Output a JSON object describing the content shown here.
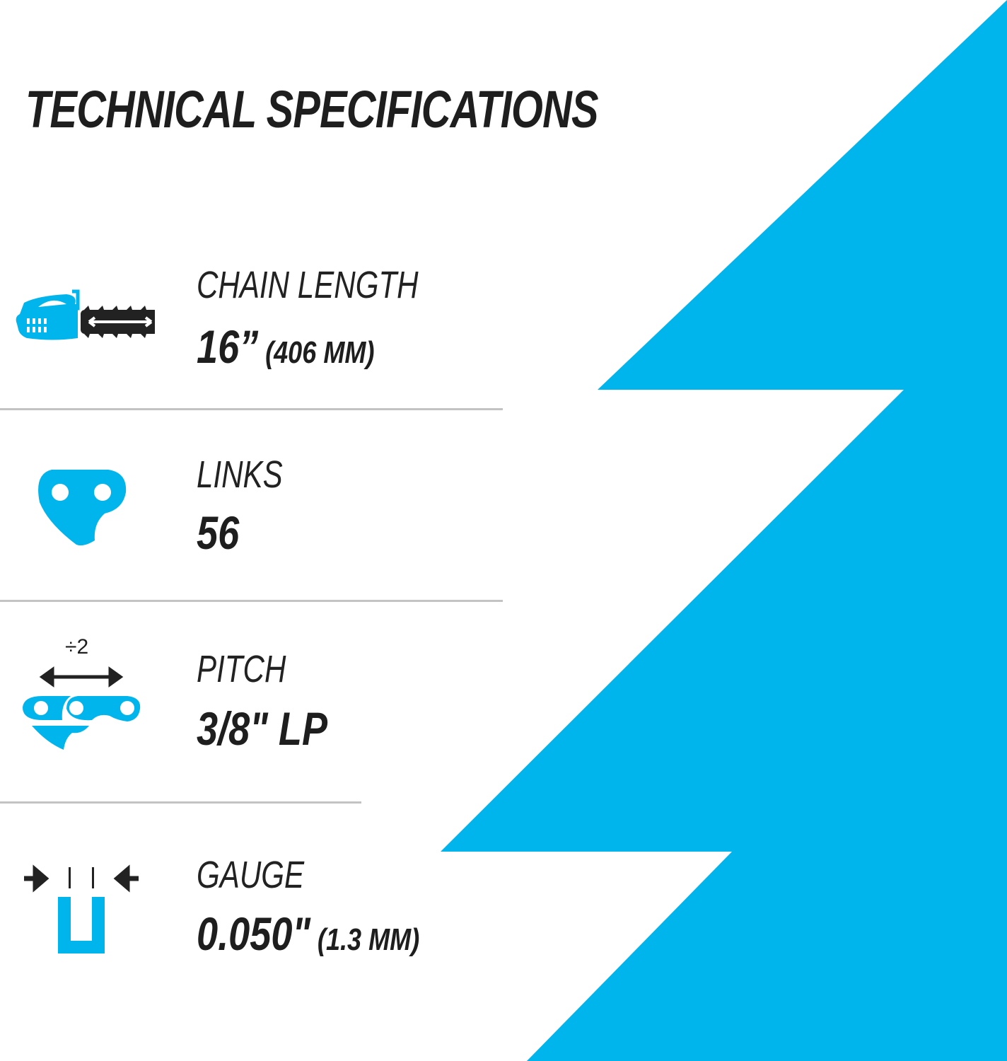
{
  "title": "TECHNICAL SPECIFICATIONS",
  "colors": {
    "accent": "#00b4ec",
    "text": "#1e1e1e",
    "divider": "#c3c3c3"
  },
  "specs": [
    {
      "icon": "chainsaw-icon",
      "label": "CHAIN LENGTH",
      "value": "16”",
      "unit": "(406 MM)"
    },
    {
      "icon": "chain-link-icon",
      "label": "LINKS",
      "value": "56",
      "unit": ""
    },
    {
      "icon": "pitch-icon",
      "label": "PITCH",
      "value": "3/8\" LP",
      "unit": "",
      "icon_text": "÷2"
    },
    {
      "icon": "gauge-icon",
      "label": "GAUGE",
      "value": "0.050\"",
      "unit": "(1.3 MM)"
    }
  ]
}
